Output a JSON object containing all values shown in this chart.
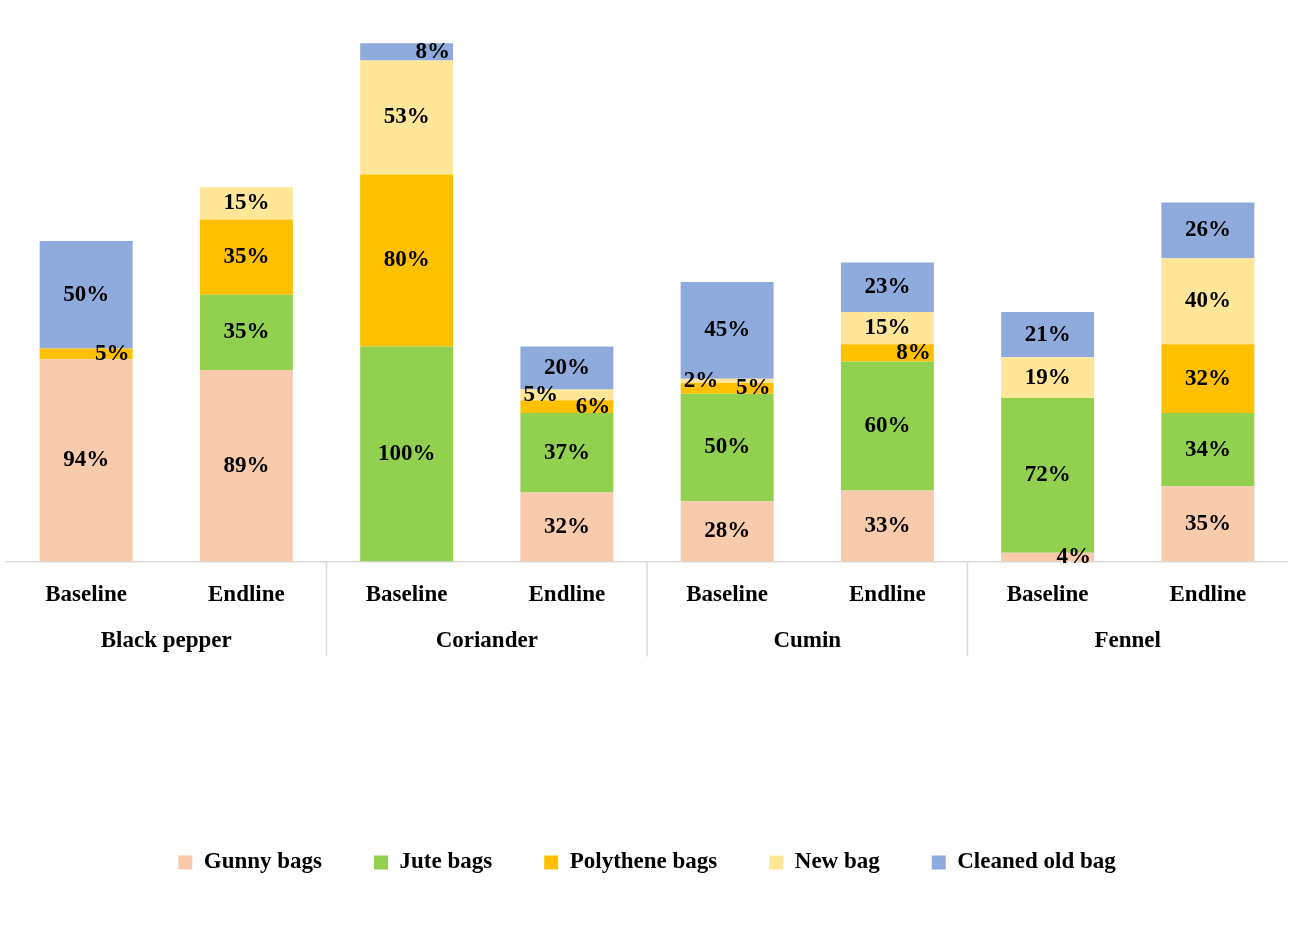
{
  "chart_data": {
    "type": "bar",
    "stacked": true,
    "legend": "bottom",
    "grid": false,
    "tick_labels": "x",
    "categories": [
      "Baseline",
      "Endline",
      "Baseline",
      "Endline",
      "Baseline",
      "Endline",
      "Baseline",
      "Endline"
    ],
    "annotations": [
      "Black pepper",
      "Coriander",
      "Cumin",
      "Fennel"
    ],
    "series": [
      {
        "name": "Gunny bags",
        "color": "#f8cbad",
        "values": [
          94,
          89,
          null,
          32,
          28,
          33,
          4,
          35
        ],
        "value_labels": [
          "94%",
          "89%",
          null,
          "32%",
          "28%",
          "33%",
          "4%",
          "35%"
        ]
      },
      {
        "name": "Jute bags",
        "color": "#92d050",
        "values": [
          null,
          35,
          100,
          37,
          50,
          60,
          72,
          34
        ],
        "value_labels": [
          null,
          "35%",
          "100%",
          "37%",
          "50%",
          "60%",
          "72%",
          "34%"
        ]
      },
      {
        "name": "Polythene bags",
        "color": "#ffc000",
        "values": [
          5,
          35,
          80,
          6,
          5,
          8,
          null,
          32
        ],
        "value_labels": [
          "5%",
          "35%",
          "80%",
          "6%",
          "5%",
          "8%",
          null,
          "32%"
        ]
      },
      {
        "name": "New bag",
        "color": "#ffe699",
        "values": [
          null,
          15,
          53,
          5,
          2,
          15,
          19,
          40
        ],
        "value_labels": [
          null,
          "15%",
          "53%",
          "5%",
          "2%",
          "15%",
          "19%",
          "40%"
        ]
      },
      {
        "name": "Cleaned old bag",
        "color": "#8faadc",
        "values": [
          50,
          null,
          8,
          20,
          45,
          23,
          21,
          26
        ],
        "value_labels": [
          "50%",
          null,
          "8%",
          "20%",
          "45%",
          "23%",
          "21%",
          "26%"
        ]
      }
    ]
  }
}
